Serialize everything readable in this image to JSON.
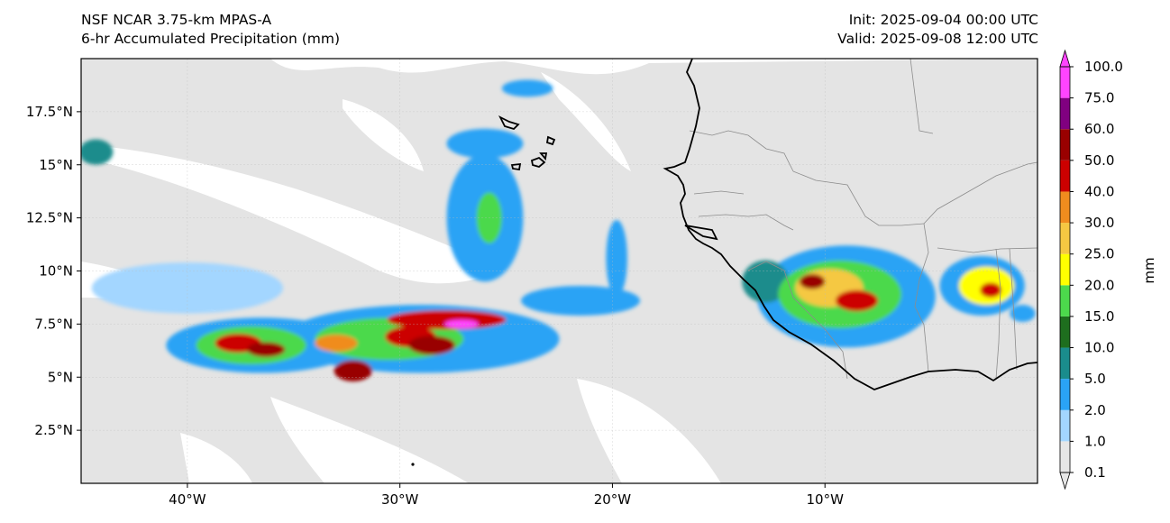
{
  "header": {
    "model_line": "NSF NCAR 3.75-km MPAS-A",
    "field_line": "6-hr Accumulated Precipitation (mm)",
    "init_line": "Init: 2025-09-04 00:00 UTC",
    "valid_line": "Valid: 2025-09-08 12:00 UTC"
  },
  "map": {
    "extent": {
      "lon_min": -45,
      "lon_max": 0,
      "lat_min": 0,
      "lat_max": 20
    },
    "lat_ticks": [
      {
        "value": 2.5,
        "label": "2.5°N"
      },
      {
        "value": 5,
        "label": "5°N"
      },
      {
        "value": 7.5,
        "label": "7.5°N"
      },
      {
        "value": 10,
        "label": "10°N"
      },
      {
        "value": 12.5,
        "label": "12.5°N"
      },
      {
        "value": 15,
        "label": "15°N"
      },
      {
        "value": 17.5,
        "label": "17.5°N"
      }
    ],
    "lon_ticks": [
      {
        "value": -40,
        "label": "40°W"
      },
      {
        "value": -30,
        "label": "30°W"
      },
      {
        "value": -20,
        "label": "20°W"
      },
      {
        "value": -10,
        "label": "10°W"
      }
    ],
    "background_color": "#e4e4e4",
    "coastline_color": "#000000",
    "border_color": "#8c8c8c"
  },
  "colorbar": {
    "unit_label": "mm",
    "levels": [
      "0.1",
      "1.0",
      "2.0",
      "5.0",
      "10.0",
      "15.0",
      "20.0",
      "25.0",
      "30.0",
      "40.0",
      "50.0",
      "60.0",
      "75.0",
      "100.0"
    ],
    "colors": [
      "#e6e6e6",
      "#a3d6ff",
      "#2aa3f5",
      "#1a8c8c",
      "#1e6e1e",
      "#4cd94c",
      "#ffff00",
      "#f5c842",
      "#f08c1e",
      "#cc0000",
      "#990000",
      "#800080",
      "#ff44ff"
    ]
  },
  "precip_cells": [
    {
      "lon": -36.5,
      "lat": 6.5,
      "rx": 4.5,
      "ry": 1.3,
      "level": 2
    },
    {
      "lon": -37.0,
      "lat": 6.5,
      "rx": 2.6,
      "ry": 0.9,
      "level": 5
    },
    {
      "lon": -37.6,
      "lat": 6.6,
      "rx": 1.1,
      "ry": 0.45,
      "level": 9
    },
    {
      "lon": -36.3,
      "lat": 6.3,
      "rx": 0.9,
      "ry": 0.35,
      "level": 10
    },
    {
      "lon": -29.0,
      "lat": 6.8,
      "rx": 6.5,
      "ry": 1.6,
      "level": 2
    },
    {
      "lon": -30.5,
      "lat": 6.8,
      "rx": 3.5,
      "ry": 1.0,
      "level": 5
    },
    {
      "lon": -29.5,
      "lat": 6.9,
      "rx": 1.2,
      "ry": 0.5,
      "level": 9
    },
    {
      "lon": -32.2,
      "lat": 5.3,
      "rx": 0.9,
      "ry": 0.5,
      "level": 10
    },
    {
      "lon": -27.8,
      "lat": 7.7,
      "rx": 2.8,
      "ry": 0.45,
      "level": 9
    },
    {
      "lon": -27.1,
      "lat": 7.5,
      "rx": 0.8,
      "ry": 0.2,
      "level": 12
    },
    {
      "lon": -28.5,
      "lat": 6.5,
      "rx": 1.1,
      "ry": 0.45,
      "level": 10
    },
    {
      "lon": -33.0,
      "lat": 6.6,
      "rx": 1.0,
      "ry": 0.4,
      "level": 8
    },
    {
      "lon": -26.0,
      "lat": 12.5,
      "rx": 1.8,
      "ry": 3.0,
      "level": 2
    },
    {
      "lon": -25.8,
      "lat": 12.5,
      "rx": 0.6,
      "ry": 1.2,
      "level": 5
    },
    {
      "lon": -24.0,
      "lat": 18.6,
      "rx": 1.2,
      "ry": 0.4,
      "level": 2
    },
    {
      "lon": -26.0,
      "lat": 16.0,
      "rx": 1.8,
      "ry": 0.7,
      "level": 2
    },
    {
      "lon": -44.3,
      "lat": 15.6,
      "rx": 0.8,
      "ry": 0.6,
      "level": 3
    },
    {
      "lon": -40.0,
      "lat": 9.2,
      "rx": 4.5,
      "ry": 1.2,
      "level": 1
    },
    {
      "lon": -21.5,
      "lat": 8.6,
      "rx": 2.8,
      "ry": 0.7,
      "level": 2
    },
    {
      "lon": -19.8,
      "lat": 10.6,
      "rx": 0.5,
      "ry": 1.8,
      "level": 2
    },
    {
      "lon": -9.0,
      "lat": 8.8,
      "rx": 4.2,
      "ry": 2.4,
      "level": 2
    },
    {
      "lon": -9.3,
      "lat": 8.9,
      "rx": 2.9,
      "ry": 1.6,
      "level": 5
    },
    {
      "lon": -9.8,
      "lat": 9.2,
      "rx": 1.6,
      "ry": 0.9,
      "level": 7
    },
    {
      "lon": -8.5,
      "lat": 8.6,
      "rx": 1.0,
      "ry": 0.5,
      "level": 9
    },
    {
      "lon": -10.6,
      "lat": 9.5,
      "rx": 0.6,
      "ry": 0.35,
      "level": 10
    },
    {
      "lon": -12.8,
      "lat": 9.5,
      "rx": 1.1,
      "ry": 1.0,
      "level": 3
    },
    {
      "lon": -2.6,
      "lat": 9.3,
      "rx": 2.0,
      "ry": 1.4,
      "level": 2
    },
    {
      "lon": -2.4,
      "lat": 9.3,
      "rx": 1.3,
      "ry": 0.9,
      "level": 6
    },
    {
      "lon": -2.2,
      "lat": 9.1,
      "rx": 0.5,
      "ry": 0.35,
      "level": 9
    },
    {
      "lon": -0.7,
      "lat": 8.0,
      "rx": 0.6,
      "ry": 0.4,
      "level": 2
    }
  ]
}
